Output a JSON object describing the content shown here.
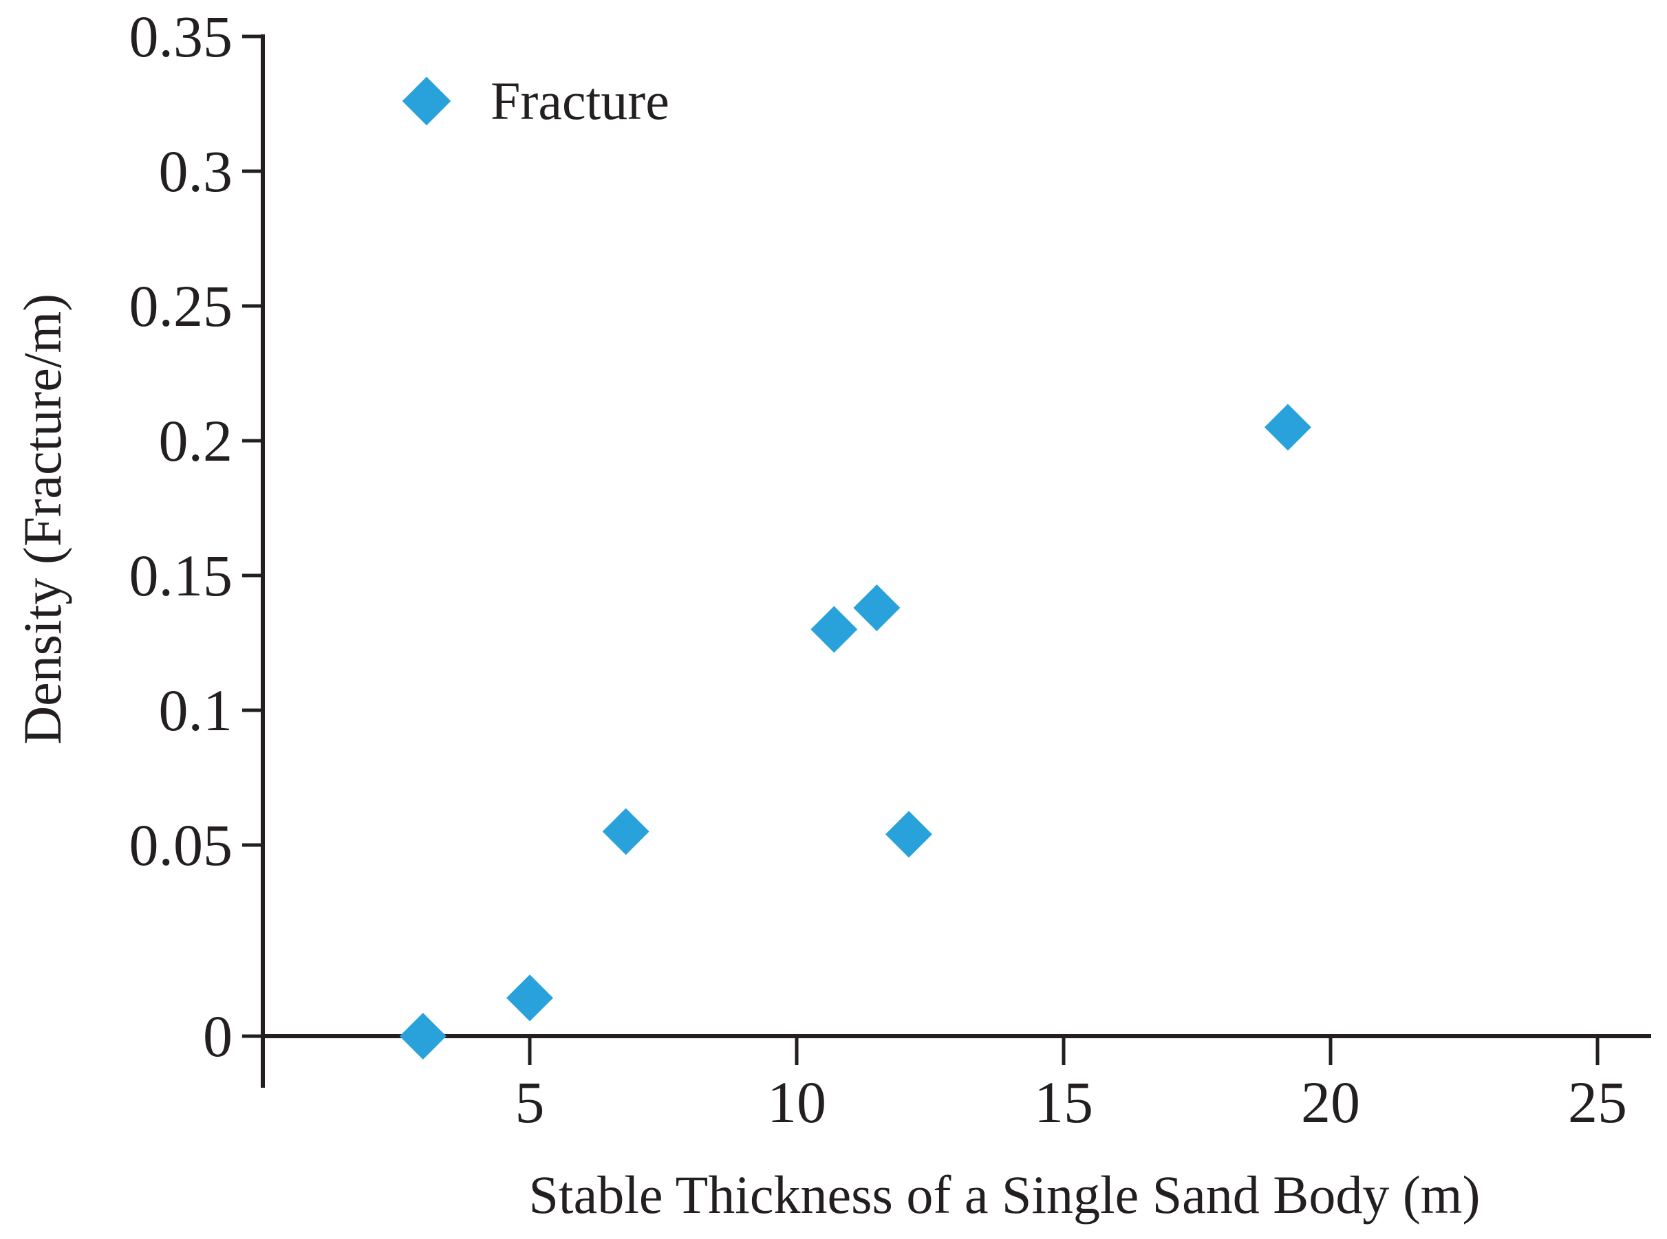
{
  "colors": {
    "accent": "#29a2dc",
    "ink": "#231f20",
    "background": "#ffffff"
  },
  "legend": {
    "label": "Fracture",
    "marker_icon": "diamond-icon"
  },
  "chart_data": {
    "type": "scatter",
    "title": "",
    "xlabel": "Stable Thickness of a Single Sand Body (m)",
    "ylabel": "Density (Fracture/m)",
    "xlim": [
      0,
      26
    ],
    "ylim": [
      0,
      0.35
    ],
    "grid": false,
    "legend_position": "top-left-inside",
    "x_ticks": [
      5,
      10,
      15,
      20,
      25
    ],
    "x_tick_labels": [
      "5",
      "10",
      "15",
      "20",
      "25"
    ],
    "y_ticks": [
      0.35,
      0.3,
      0.25,
      0.2,
      0.15,
      0.1,
      0.05,
      0
    ],
    "y_tick_labels": [
      "0.35",
      "0.3",
      "0.25",
      "0.2",
      "0.15",
      "0.1",
      "0.05",
      "0"
    ],
    "series": [
      {
        "name": "Fracture",
        "marker": "diamond",
        "color": "#29a2dc",
        "points": [
          {
            "x": 3.0,
            "y": 0
          },
          {
            "x": 5.0,
            "y": 0.01
          },
          {
            "x": 6.8,
            "y": 0.055
          },
          {
            "x": 10.7,
            "y": 0.13
          },
          {
            "x": 11.5,
            "y": 0.138
          },
          {
            "x": 12.1,
            "y": 0.054
          },
          {
            "x": 19.2,
            "y": 0.205
          }
        ]
      }
    ]
  }
}
